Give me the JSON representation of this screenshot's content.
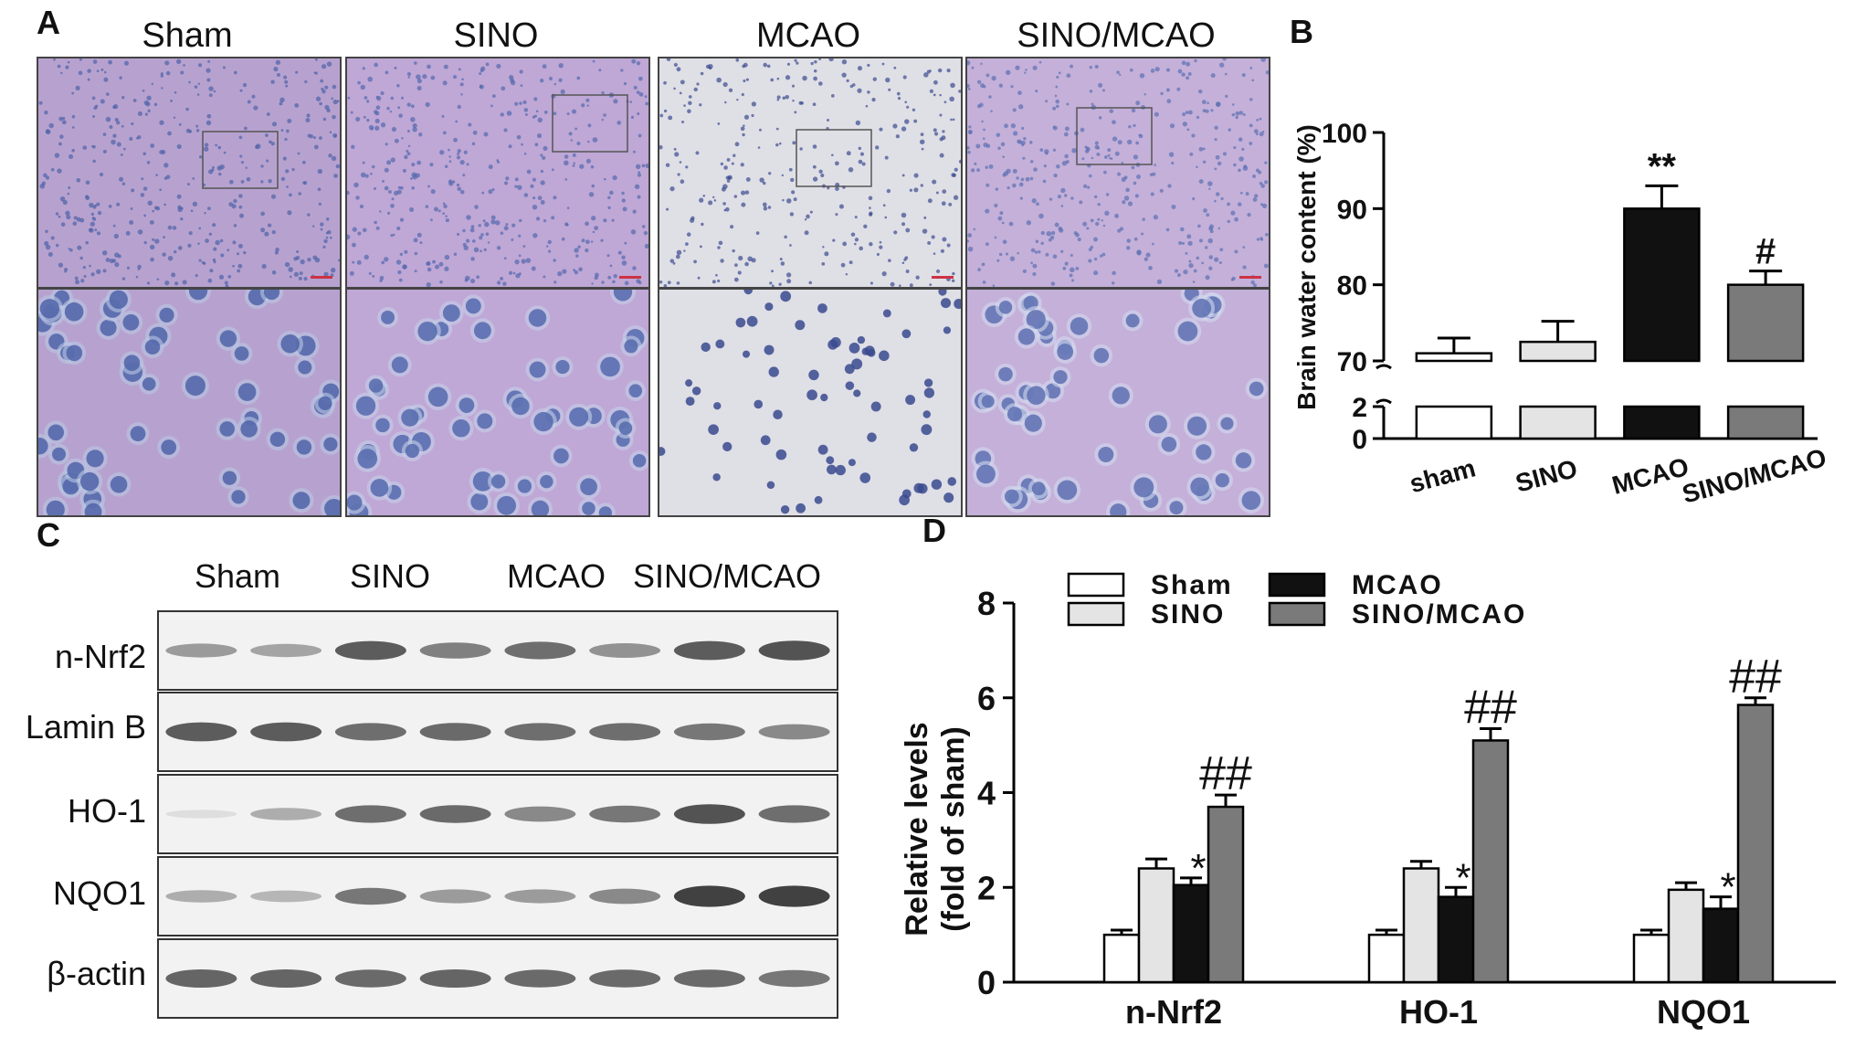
{
  "panel_labels": {
    "a": "A",
    "b": "B",
    "c": "C",
    "d": "D"
  },
  "micrographs": {
    "groups": [
      "Sham",
      "SINO",
      "MCAO",
      "SINO/MCAO"
    ],
    "tones": [
      {
        "bg": "#b7a2cf",
        "cell": "#4f63a8",
        "ring": "#b9c6e3"
      },
      {
        "bg": "#bfa7d6",
        "cell": "#5368ad",
        "ring": "#c5cfe8"
      },
      {
        "bg": "#dfdfe6",
        "cell": "#3a4a8e",
        "ring": "#ededf2"
      },
      {
        "bg": "#c4b0d9",
        "cell": "#5d70b2",
        "ring": "#d2d9ee"
      }
    ]
  },
  "western_blot": {
    "lanes": [
      "Sham",
      "SINO",
      "MCAO",
      "SINO/MCAO"
    ],
    "rows": [
      {
        "label": "n-Nrf2",
        "intensities": [
          0.45,
          0.4,
          0.8,
          0.6,
          0.7,
          0.5,
          0.8,
          0.85
        ]
      },
      {
        "label": "Lamin B",
        "intensities": [
          0.8,
          0.8,
          0.7,
          0.72,
          0.7,
          0.7,
          0.65,
          0.55
        ]
      },
      {
        "label": "HO-1",
        "intensities": [
          0.08,
          0.35,
          0.7,
          0.72,
          0.55,
          0.65,
          0.85,
          0.7
        ]
      },
      {
        "label": "NQO1",
        "intensities": [
          0.35,
          0.3,
          0.65,
          0.45,
          0.45,
          0.55,
          0.95,
          0.95
        ]
      },
      {
        "label": "β-actin",
        "intensities": [
          0.75,
          0.75,
          0.72,
          0.75,
          0.72,
          0.72,
          0.72,
          0.65
        ]
      }
    ]
  },
  "colors": {
    "sham": "#ffffff",
    "sino": "#e4e4e4",
    "mcao": "#111111",
    "sino_mcao": "#7a7a7a"
  },
  "chart_data": [
    {
      "type": "bar",
      "panel": "B",
      "categories": [
        "sham",
        "SINO",
        "MCAO",
        "SINO/MCAO"
      ],
      "values": [
        71,
        72.5,
        90,
        80
      ],
      "errors": [
        2,
        2.7,
        3,
        1.8
      ],
      "annotations": [
        "",
        "",
        "**",
        "#"
      ],
      "ylabel": "Brain water content (%)",
      "y_broken_axis": true,
      "ylim_lower": [
        0,
        2
      ],
      "ylim_upper": [
        70,
        100
      ],
      "yticks": [
        0,
        2,
        70,
        80,
        90,
        100
      ],
      "bar_colors": [
        "#ffffff",
        "#e4e4e4",
        "#111111",
        "#7a7a7a"
      ]
    },
    {
      "type": "bar",
      "panel": "D",
      "categories": [
        "n-Nrf2",
        "HO-1",
        "NQO1"
      ],
      "series": [
        {
          "name": "Sham",
          "values": [
            1.0,
            1.0,
            1.0
          ],
          "errors": [
            0.1,
            0.1,
            0.1
          ],
          "annotations": [
            "",
            "",
            ""
          ]
        },
        {
          "name": "SINO",
          "values": [
            2.4,
            2.4,
            1.95
          ],
          "errors": [
            0.2,
            0.15,
            0.15
          ],
          "annotations": [
            "",
            "",
            ""
          ]
        },
        {
          "name": "MCAO",
          "values": [
            2.05,
            1.8,
            1.55
          ],
          "errors": [
            0.15,
            0.2,
            0.25
          ],
          "annotations": [
            "*",
            "*",
            "*"
          ]
        },
        {
          "name": "SINO/MCAO",
          "values": [
            3.7,
            5.1,
            5.85
          ],
          "errors": [
            0.25,
            0.25,
            0.15
          ],
          "annotations": [
            "##",
            "##",
            "##"
          ]
        }
      ],
      "ylabel": "Relative levels (fold of sham)",
      "ylim": [
        0,
        8
      ],
      "yticks": [
        0,
        2,
        4,
        6,
        8
      ],
      "legend_placement": "top",
      "bar_colors": [
        "#ffffff",
        "#e4e4e4",
        "#111111",
        "#7a7a7a"
      ]
    }
  ]
}
